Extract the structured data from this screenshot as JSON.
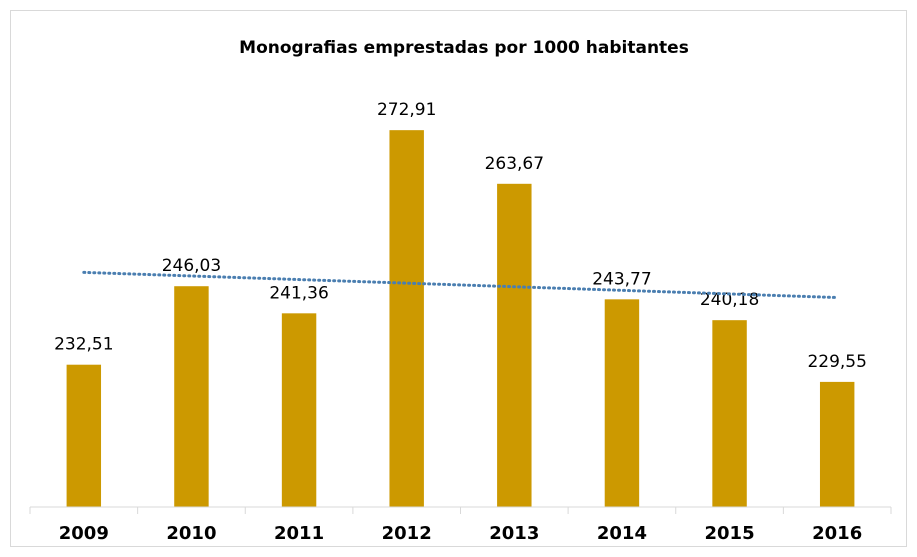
{
  "chart_data": {
    "type": "bar",
    "title": "Monografias emprestadas por 1000 habitantes",
    "categories": [
      "2009",
      "2010",
      "2011",
      "2012",
      "2013",
      "2014",
      "2015",
      "2016"
    ],
    "values": [
      232.51,
      246.03,
      241.36,
      272.91,
      263.67,
      243.77,
      240.18,
      229.55
    ],
    "value_labels": [
      "232,51",
      "246,03",
      "241,36",
      "272,91",
      "263,67",
      "243,77",
      "240,18",
      "229,55"
    ],
    "color": "#cc9900",
    "ylim": [
      208,
      280
    ],
    "trendline": "linear",
    "trendline_color": "#4a7eb0"
  }
}
